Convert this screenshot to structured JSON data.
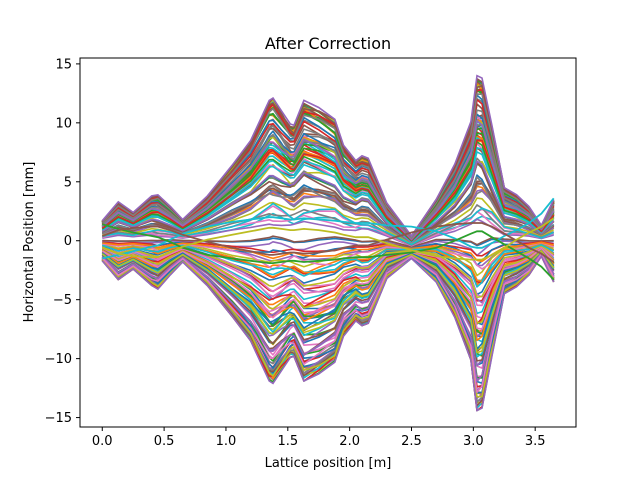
{
  "chart_data": {
    "type": "line",
    "title": "After Correction",
    "xlabel": "Lattice position [m]",
    "ylabel": "Horizontal Position [mm]",
    "xlim": [
      -0.18,
      3.83
    ],
    "ylim": [
      -15.8,
      15.5
    ],
    "xticks": [
      0.0,
      0.5,
      1.0,
      1.5,
      2.0,
      2.5,
      3.0,
      3.5
    ],
    "xtick_labels": [
      "0.0",
      "0.5",
      "1.0",
      "1.5",
      "2.0",
      "2.5",
      "3.0",
      "3.5"
    ],
    "yticks": [
      -15,
      -10,
      -5,
      0,
      5,
      10,
      15
    ],
    "ytick_labels": [
      "−15",
      "−10",
      "−5",
      "0",
      "5",
      "10",
      "15"
    ],
    "grid": false,
    "legend": "none",
    "colors": [
      "#1f77b4",
      "#ff7f0e",
      "#2ca02c",
      "#d62728",
      "#9467bd",
      "#8c564b",
      "#e377c2",
      "#7f7f7f",
      "#bcbd22",
      "#17becf"
    ],
    "x": [
      0.0,
      0.13,
      0.25,
      0.4,
      0.45,
      0.55,
      0.65,
      0.85,
      1.05,
      1.2,
      1.35,
      1.38,
      1.45,
      1.52,
      1.55,
      1.63,
      1.75,
      1.88,
      1.95,
      2.05,
      2.1,
      2.15,
      2.3,
      2.5,
      2.7,
      2.85,
      2.98,
      3.03,
      3.07,
      3.15,
      3.25,
      3.35,
      3.45,
      3.55,
      3.65
    ],
    "envelope": {
      "upper": [
        1.7,
        3.3,
        2.4,
        3.8,
        3.9,
        2.9,
        1.8,
        3.8,
        6.4,
        8.5,
        11.9,
        12.1,
        11.0,
        9.9,
        9.8,
        11.9,
        11.3,
        10.3,
        8.1,
        6.8,
        7.2,
        7.0,
        3.2,
        0.4,
        3.5,
        6.5,
        10.1,
        14.0,
        13.8,
        9.8,
        4.5,
        3.9,
        2.9,
        1.3,
        3.5
      ],
      "lower": [
        -1.7,
        -3.3,
        -2.4,
        -3.8,
        -4.1,
        -2.9,
        -1.8,
        -3.8,
        -6.4,
        -8.5,
        -11.9,
        -12.1,
        -11.0,
        -9.9,
        -9.8,
        -11.9,
        -11.3,
        -10.3,
        -8.1,
        -6.8,
        -7.2,
        -7.0,
        -3.2,
        -1.5,
        -3.5,
        -6.5,
        -10.1,
        -14.4,
        -14.2,
        -9.8,
        -4.5,
        -3.9,
        -2.9,
        -1.3,
        -3.5
      ]
    },
    "crossing_series": [
      {
        "values": [
          -1.5,
          -1.2,
          -0.9,
          -0.5,
          -0.4,
          0.1,
          0.6,
          1.2,
          1.6,
          1.8,
          2.0,
          2.0,
          1.9,
          1.8,
          1.8,
          1.9,
          1.8,
          1.7,
          1.6,
          1.5,
          1.5,
          1.5,
          1.3,
          1.2,
          0.8,
          0.2,
          -0.5,
          -0.6,
          -0.6,
          -0.2,
          0.4,
          0.9,
          1.5,
          2.3,
          3.6
        ]
      },
      {
        "values": [
          1.4,
          1.0,
          0.7,
          0.4,
          0.3,
          -0.1,
          -0.6,
          -1.2,
          -1.5,
          -1.7,
          -1.9,
          -1.9,
          -1.8,
          -1.7,
          -1.7,
          -1.8,
          -1.7,
          -1.6,
          -1.5,
          -1.4,
          -1.4,
          -1.4,
          -1.2,
          -1.0,
          -0.6,
          0.0,
          0.6,
          0.8,
          0.8,
          0.3,
          -0.3,
          -0.9,
          -1.5,
          -2.2,
          -3.3
        ]
      },
      {
        "values": [
          0.4,
          0.9,
          1.1,
          1.2,
          1.2,
          0.9,
          0.5,
          -0.1,
          -0.6,
          -0.9,
          -1.2,
          -1.2,
          -1.1,
          -1.0,
          -1.0,
          -1.1,
          -1.0,
          -0.8,
          -0.6,
          -0.4,
          -0.4,
          -0.4,
          0.1,
          0.7,
          1.2,
          1.4,
          1.5,
          1.5,
          1.5,
          1.2,
          0.6,
          0.0,
          -0.6,
          -1.1,
          -1.8
        ]
      },
      {
        "values": [
          -0.6,
          -1.1,
          -1.3,
          -1.4,
          -1.4,
          -1.0,
          -0.5,
          0.1,
          0.5,
          0.8,
          1.1,
          1.1,
          1.0,
          0.9,
          0.9,
          1.0,
          0.9,
          0.7,
          0.5,
          0.3,
          0.3,
          0.3,
          -0.2,
          -0.8,
          -1.3,
          -1.5,
          -1.6,
          -1.6,
          -1.6,
          -1.2,
          -0.6,
          0.1,
          0.7,
          1.2,
          1.9
        ]
      }
    ]
  }
}
